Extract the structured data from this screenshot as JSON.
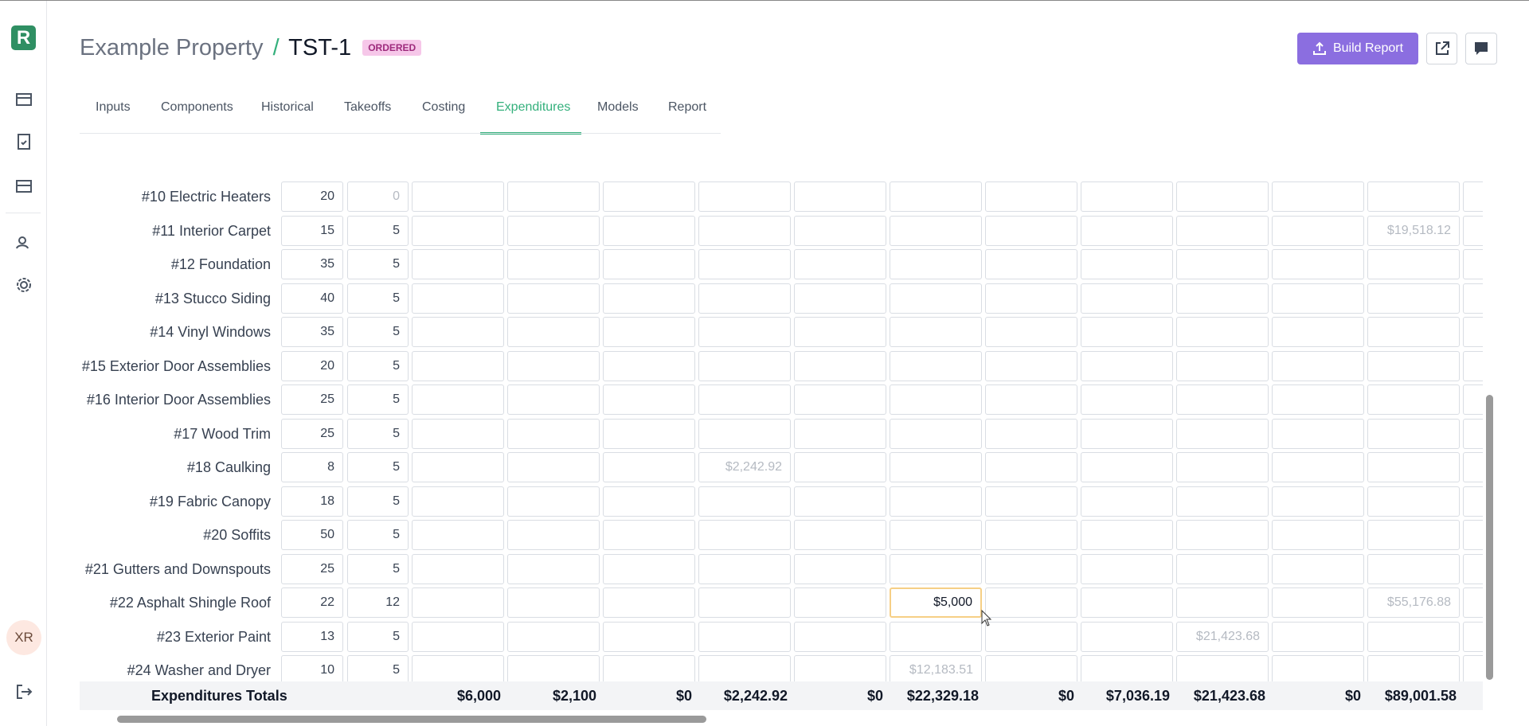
{
  "sidebar": {
    "logo": "R",
    "avatar": "XR"
  },
  "header": {
    "property": "Example Property",
    "separator": "/",
    "code": "TST-1",
    "status": "ORDERED",
    "build_report": "Build Report"
  },
  "tabs": {
    "items": [
      "Inputs",
      "Components",
      "Historical",
      "Takeoffs",
      "Costing",
      "Expenditures",
      "Models",
      "Report"
    ],
    "active": 5
  },
  "table": {
    "rows": [
      {
        "label": "#10 Electric Heaters",
        "life": "20",
        "remaining": "0",
        "muted": true,
        "cells": [
          null,
          null,
          null,
          null,
          null,
          null,
          null,
          null,
          null,
          null,
          null
        ]
      },
      {
        "label": "#11 Interior Carpet",
        "life": "15",
        "remaining": "5",
        "cells": [
          null,
          null,
          null,
          null,
          null,
          null,
          null,
          null,
          null,
          null,
          "$19,518.12"
        ]
      },
      {
        "label": "#12 Foundation",
        "life": "35",
        "remaining": "5",
        "cells": [
          null,
          null,
          null,
          null,
          null,
          null,
          null,
          null,
          null,
          null,
          null
        ]
      },
      {
        "label": "#13 Stucco Siding",
        "life": "40",
        "remaining": "5",
        "cells": [
          null,
          null,
          null,
          null,
          null,
          null,
          null,
          null,
          null,
          null,
          null
        ]
      },
      {
        "label": "#14 Vinyl Windows",
        "life": "35",
        "remaining": "5",
        "cells": [
          null,
          null,
          null,
          null,
          null,
          null,
          null,
          null,
          null,
          null,
          null
        ]
      },
      {
        "label": "#15 Exterior Door Assemblies",
        "life": "20",
        "remaining": "5",
        "cells": [
          null,
          null,
          null,
          null,
          null,
          null,
          null,
          null,
          null,
          null,
          null
        ]
      },
      {
        "label": "#16 Interior Door Assemblies",
        "life": "25",
        "remaining": "5",
        "cells": [
          null,
          null,
          null,
          null,
          null,
          null,
          null,
          null,
          null,
          null,
          null
        ]
      },
      {
        "label": "#17 Wood Trim",
        "life": "25",
        "remaining": "5",
        "cells": [
          null,
          null,
          null,
          null,
          null,
          null,
          null,
          null,
          null,
          null,
          null
        ]
      },
      {
        "label": "#18 Caulking",
        "life": "8",
        "remaining": "5",
        "cells": [
          null,
          null,
          null,
          "$2,242.92",
          null,
          null,
          null,
          null,
          null,
          null,
          null
        ]
      },
      {
        "label": "#19 Fabric Canopy",
        "life": "18",
        "remaining": "5",
        "cells": [
          null,
          null,
          null,
          null,
          null,
          null,
          null,
          null,
          null,
          null,
          null
        ]
      },
      {
        "label": "#20 Soffits",
        "life": "50",
        "remaining": "5",
        "cells": [
          null,
          null,
          null,
          null,
          null,
          null,
          null,
          null,
          null,
          null,
          null
        ]
      },
      {
        "label": "#21 Gutters and Downspouts",
        "life": "25",
        "remaining": "5",
        "cells": [
          null,
          null,
          null,
          null,
          null,
          null,
          null,
          null,
          null,
          null,
          null
        ]
      },
      {
        "label": "#22 Asphalt Shingle Roof",
        "life": "22",
        "remaining": "12",
        "focused": 5,
        "cells": [
          null,
          null,
          null,
          null,
          null,
          "$5,000",
          null,
          null,
          null,
          null,
          "$55,176.88"
        ]
      },
      {
        "label": "#23 Exterior Paint",
        "life": "13",
        "remaining": "5",
        "cells": [
          null,
          null,
          null,
          null,
          null,
          null,
          null,
          null,
          "$21,423.68",
          null,
          null
        ]
      },
      {
        "label": "#24 Washer and Dryer",
        "life": "10",
        "remaining": "5",
        "cells": [
          null,
          null,
          null,
          null,
          null,
          "$12,183.51",
          null,
          null,
          null,
          null,
          null
        ]
      }
    ],
    "totals": {
      "label": "Expenditures Totals",
      "values": [
        "$6,000",
        "$2,100",
        "$0",
        "$2,242.92",
        "$0",
        "$22,329.18",
        "$0",
        "$7,036.19",
        "$21,423.68",
        "$0",
        "$89,001.58"
      ]
    }
  }
}
